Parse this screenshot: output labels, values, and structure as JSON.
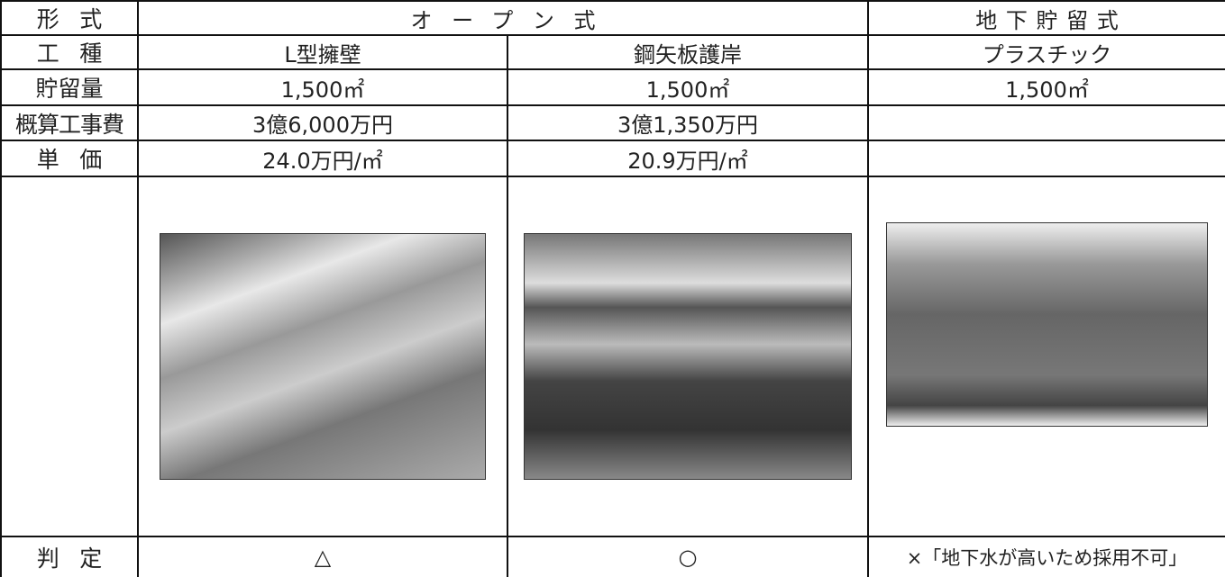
{
  "table": {
    "header": {
      "label": "形式",
      "open": "オープン式",
      "underground": "地下貯留式"
    },
    "rows": [
      {
        "label": "工種",
        "cells": [
          "L型擁壁",
          "鋼矢板護岸",
          "プラスチック"
        ]
      },
      {
        "label": "貯留量",
        "cells": [
          "1,500㎡",
          "1,500㎡",
          "1,500㎡"
        ]
      },
      {
        "label": "概算工事費",
        "cells": [
          "3億6,000万円",
          "3億1,350万円"
        ]
      },
      {
        "label": "単価",
        "cells": [
          "24.0万円/㎡",
          "20.9万円/㎡"
        ]
      }
    ],
    "judgement": {
      "label": "判定",
      "cells": [
        "△",
        "○",
        "×「地下水が高いため採用不可」"
      ]
    }
  }
}
